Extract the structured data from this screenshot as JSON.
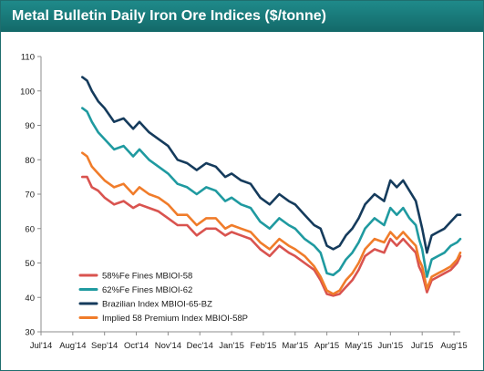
{
  "header": {
    "title": "Metal Bulletin Daily Iron Ore Indices ($/tonne)"
  },
  "colors": {
    "header_bg": "#177979",
    "axis": "#8c8c8c"
  },
  "chart_data": {
    "type": "line",
    "title": "Metal Bulletin Daily Iron Ore Indices ($/tonne)",
    "xlabel": "",
    "ylabel": "",
    "ylim": [
      30,
      110
    ],
    "yticks": [
      30,
      40,
      50,
      60,
      70,
      80,
      90,
      100,
      110
    ],
    "xlim": [
      0,
      13.2
    ],
    "xticks": [
      {
        "label": "Jul'14",
        "x": 0
      },
      {
        "label": "Aug'14",
        "x": 1
      },
      {
        "label": "Sep'14",
        "x": 2
      },
      {
        "label": "Oct'14",
        "x": 3
      },
      {
        "label": "Nov'14",
        "x": 4
      },
      {
        "label": "Dec'14",
        "x": 5
      },
      {
        "label": "Jan'15",
        "x": 6
      },
      {
        "label": "Feb'15",
        "x": 7
      },
      {
        "label": "Mar'15",
        "x": 8
      },
      {
        "label": "Apr'15",
        "x": 9
      },
      {
        "label": "May'15",
        "x": 10
      },
      {
        "label": "Jun'15",
        "x": 11
      },
      {
        "label": "Jul'15",
        "x": 12
      },
      {
        "label": "Aug'15",
        "x": 13
      }
    ],
    "grid": false,
    "legend": "bottom-left",
    "series": [
      {
        "name": "58%Fe Fines MBIOI-58",
        "color": "#d9534f",
        "x": [
          1.3,
          1.45,
          1.6,
          1.8,
          2.0,
          2.3,
          2.6,
          2.9,
          3.1,
          3.4,
          3.7,
          4.0,
          4.3,
          4.6,
          4.9,
          5.2,
          5.5,
          5.8,
          6.0,
          6.3,
          6.6,
          6.9,
          7.2,
          7.5,
          7.8,
          8.0,
          8.3,
          8.6,
          8.8,
          9.0,
          9.2,
          9.4,
          9.6,
          9.8,
          10.0,
          10.2,
          10.5,
          10.8,
          11.0,
          11.2,
          11.4,
          11.6,
          11.8,
          11.9,
          12.0,
          12.15,
          12.3,
          12.5,
          12.7,
          12.9,
          13.1,
          13.2
        ],
        "values": [
          75,
          75,
          72,
          71,
          69,
          67,
          68,
          66,
          67,
          66,
          65,
          63,
          61,
          61,
          58,
          60,
          60,
          58,
          59,
          58,
          57,
          54,
          52,
          55,
          53,
          52,
          50,
          48,
          45,
          41,
          40.5,
          41,
          43,
          45,
          48,
          52,
          54,
          53,
          57,
          55,
          57,
          55,
          53,
          49,
          47,
          41.5,
          45,
          46,
          47,
          48,
          50,
          52
        ]
      },
      {
        "name": "62%Fe Fines MBIOI-62",
        "color": "#1f9aa0",
        "x": [
          1.3,
          1.45,
          1.6,
          1.8,
          2.0,
          2.3,
          2.6,
          2.9,
          3.1,
          3.4,
          3.7,
          4.0,
          4.3,
          4.6,
          4.9,
          5.2,
          5.5,
          5.8,
          6.0,
          6.3,
          6.6,
          6.9,
          7.2,
          7.5,
          7.8,
          8.0,
          8.3,
          8.6,
          8.8,
          9.0,
          9.2,
          9.4,
          9.6,
          9.8,
          10.0,
          10.2,
          10.5,
          10.8,
          11.0,
          11.2,
          11.4,
          11.6,
          11.8,
          11.9,
          12.0,
          12.15,
          12.3,
          12.5,
          12.7,
          12.9,
          13.1,
          13.2
        ],
        "values": [
          95,
          94,
          91,
          88,
          86,
          83,
          84,
          81,
          83,
          80,
          78,
          76,
          73,
          72,
          70,
          72,
          71,
          68,
          69,
          67,
          66,
          62,
          60,
          63,
          61,
          60,
          57,
          55,
          53,
          47,
          46.5,
          48,
          51,
          53,
          56,
          60,
          63,
          61,
          66,
          64,
          66,
          63,
          61,
          57,
          54,
          46,
          51,
          52,
          53,
          55,
          56,
          57
        ]
      },
      {
        "name": "Brazilian Index MBIOI-65-BZ",
        "color": "#153b5c",
        "x": [
          1.3,
          1.45,
          1.6,
          1.8,
          2.0,
          2.3,
          2.6,
          2.9,
          3.1,
          3.4,
          3.7,
          4.0,
          4.3,
          4.6,
          4.9,
          5.2,
          5.5,
          5.8,
          6.0,
          6.3,
          6.6,
          6.9,
          7.2,
          7.5,
          7.8,
          8.0,
          8.3,
          8.6,
          8.8,
          9.0,
          9.2,
          9.4,
          9.6,
          9.8,
          10.0,
          10.2,
          10.5,
          10.8,
          11.0,
          11.2,
          11.4,
          11.6,
          11.8,
          11.9,
          12.0,
          12.15,
          12.3,
          12.5,
          12.7,
          12.9,
          13.1,
          13.2
        ],
        "values": [
          104,
          103,
          100,
          97,
          95,
          91,
          92,
          89,
          91,
          88,
          86,
          84,
          80,
          79,
          77,
          79,
          78,
          75,
          76,
          74,
          73,
          69,
          67,
          70,
          68,
          67,
          64,
          61,
          60,
          55,
          54,
          55,
          58,
          60,
          63,
          67,
          70,
          68,
          74,
          72,
          74,
          71,
          68,
          64,
          60,
          53,
          58,
          59,
          60,
          62,
          64,
          64
        ]
      },
      {
        "name": "Implied 58 Premium Index MBIOI-58P",
        "color": "#f07c2a",
        "x": [
          1.3,
          1.45,
          1.6,
          1.8,
          2.0,
          2.3,
          2.6,
          2.9,
          3.1,
          3.4,
          3.7,
          4.0,
          4.3,
          4.6,
          4.9,
          5.2,
          5.5,
          5.8,
          6.0,
          6.3,
          6.6,
          6.9,
          7.2,
          7.5,
          7.8,
          8.0,
          8.3,
          8.6,
          8.8,
          9.0,
          9.2,
          9.4,
          9.6,
          9.8,
          10.0,
          10.2,
          10.5,
          10.8,
          11.0,
          11.2,
          11.4,
          11.6,
          11.8,
          11.9,
          12.0,
          12.15,
          12.3,
          12.5,
          12.7,
          12.9,
          13.1,
          13.2
        ],
        "values": [
          82,
          81,
          78,
          76,
          74,
          72,
          73,
          70,
          72,
          70,
          69,
          67,
          64,
          64,
          61,
          63,
          63,
          60,
          61,
          60,
          59,
          56,
          54,
          57,
          55,
          54,
          52,
          49,
          46,
          42,
          41,
          42,
          45,
          47,
          50,
          54,
          57,
          56,
          59,
          57,
          59,
          57,
          55,
          51,
          49,
          42.5,
          46,
          47,
          48,
          49,
          51,
          53
        ]
      }
    ]
  }
}
